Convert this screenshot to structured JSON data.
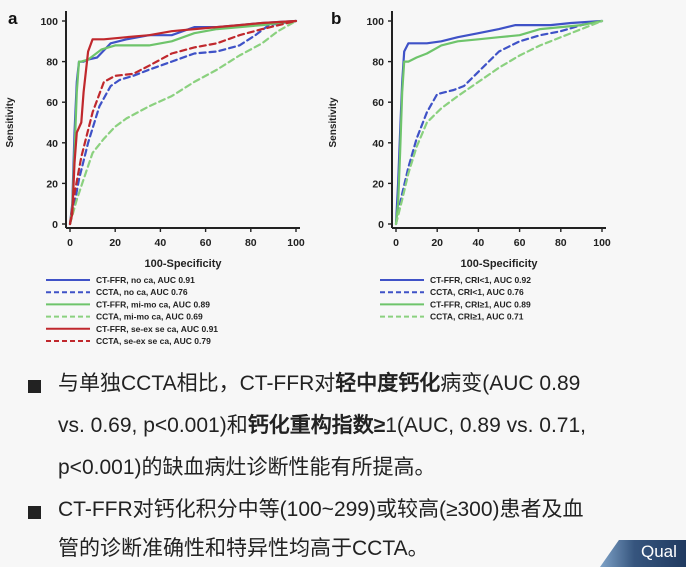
{
  "chart_data": [
    {
      "type": "line",
      "panel_label": "a",
      "xlabel": "100-Specificity",
      "ylabel": "Sensitivity",
      "xlim": [
        0,
        100
      ],
      "ylim": [
        0,
        100
      ],
      "xticks": [
        "0",
        "20",
        "40",
        "60",
        "80",
        "100"
      ],
      "yticks": [
        "0",
        "20",
        "40",
        "60",
        "80",
        "100"
      ],
      "series": [
        {
          "name": "CT-FFR, no ca, AUC 0.91",
          "color": "#3f52c7",
          "dash": false,
          "x": [
            0,
            1,
            2,
            3,
            4,
            6,
            8,
            12,
            18,
            25,
            35,
            45,
            55,
            65,
            75,
            85,
            100
          ],
          "y": [
            0,
            10,
            45,
            70,
            80,
            80,
            81,
            82,
            89,
            91,
            93,
            93,
            97,
            97,
            98,
            99,
            100
          ]
        },
        {
          "name": "CCTA, no ca, AUC 0.76",
          "color": "#3f52c7",
          "dash": true,
          "x": [
            0,
            2,
            4,
            8,
            13,
            18,
            22,
            28,
            35,
            45,
            55,
            65,
            75,
            82,
            88,
            100
          ],
          "y": [
            0,
            10,
            22,
            40,
            58,
            68,
            71,
            73,
            76,
            80,
            84,
            85,
            88,
            93,
            98,
            100
          ]
        },
        {
          "name": "CT-FFR, mi-mo ca, AUC 0.89",
          "color": "#6ec46b",
          "dash": false,
          "x": [
            0,
            1,
            2,
            3,
            4,
            5,
            8,
            14,
            20,
            25,
            35,
            45,
            55,
            65,
            75,
            85,
            100
          ],
          "y": [
            0,
            8,
            35,
            65,
            80,
            80,
            81,
            86,
            88,
            88,
            88,
            90,
            94,
            96,
            97,
            98,
            100
          ]
        },
        {
          "name": "CCTA, mi-mo ca, AUC 0.69",
          "color": "#8bd17f",
          "dash": true,
          "x": [
            0,
            3,
            6,
            10,
            15,
            20,
            25,
            35,
            45,
            55,
            65,
            75,
            85,
            92,
            100
          ],
          "y": [
            0,
            12,
            22,
            35,
            42,
            48,
            52,
            58,
            63,
            70,
            76,
            83,
            89,
            95,
            100
          ]
        },
        {
          "name": "CT-FFR, se-ex se ca, AUC 0.91",
          "color": "#c0282d",
          "dash": false,
          "x": [
            0,
            1,
            2,
            3,
            5,
            6,
            8,
            10,
            15,
            25,
            35,
            45,
            55,
            65,
            75,
            85,
            100
          ],
          "y": [
            0,
            5,
            30,
            45,
            50,
            65,
            85,
            91,
            91,
            92,
            93,
            95,
            96,
            97,
            98,
            99,
            100
          ]
        },
        {
          "name": "CCTA, se-ex se ca, AUC 0.79",
          "color": "#c0282d",
          "dash": true,
          "x": [
            0,
            2,
            5,
            10,
            15,
            20,
            28,
            35,
            45,
            55,
            65,
            75,
            85,
            100
          ],
          "y": [
            0,
            15,
            33,
            55,
            70,
            73,
            74,
            78,
            84,
            87,
            89,
            93,
            96,
            100
          ]
        }
      ]
    },
    {
      "type": "line",
      "panel_label": "b",
      "xlabel": "100-Specificity",
      "ylabel": "Sensitivity",
      "xlim": [
        0,
        100
      ],
      "ylim": [
        0,
        100
      ],
      "xticks": [
        "0",
        "20",
        "40",
        "60",
        "80",
        "100"
      ],
      "yticks": [
        "0",
        "20",
        "40",
        "60",
        "80",
        "100"
      ],
      "series": [
        {
          "name": "CT-FFR, CRI<1, AUC 0.92",
          "color": "#3f52c7",
          "dash": false,
          "x": [
            0,
            1,
            2,
            3,
            4,
            6,
            10,
            15,
            22,
            30,
            40,
            50,
            58,
            65,
            75,
            85,
            100
          ],
          "y": [
            0,
            20,
            45,
            70,
            85,
            89,
            89,
            89,
            90,
            92,
            94,
            96,
            98,
            98,
            98,
            99,
            100
          ]
        },
        {
          "name": "CCTA, CRI<1, AUC 0.76",
          "color": "#3f52c7",
          "dash": true,
          "x": [
            0,
            3,
            6,
            10,
            15,
            20,
            28,
            33,
            40,
            50,
            60,
            70,
            80,
            90,
            100
          ],
          "y": [
            0,
            15,
            28,
            42,
            55,
            64,
            66,
            68,
            75,
            85,
            90,
            93,
            95,
            98,
            100
          ]
        },
        {
          "name": "CT-FFR, CRI≥1, AUC 0.89",
          "color": "#6ec46b",
          "dash": false,
          "x": [
            0,
            1,
            2,
            3,
            4,
            6,
            10,
            15,
            22,
            30,
            40,
            50,
            60,
            70,
            80,
            90,
            100
          ],
          "y": [
            0,
            10,
            35,
            65,
            80,
            80,
            82,
            84,
            88,
            90,
            91,
            92,
            93,
            96,
            97,
            98,
            100
          ]
        },
        {
          "name": "CCTA, CRI≥1, AUC 0.71",
          "color": "#8bd17f",
          "dash": true,
          "x": [
            0,
            3,
            6,
            10,
            15,
            22,
            30,
            40,
            50,
            60,
            70,
            80,
            90,
            100
          ],
          "y": [
            0,
            12,
            25,
            38,
            50,
            57,
            63,
            70,
            77,
            83,
            88,
            92,
            96,
            100
          ]
        }
      ]
    }
  ],
  "bullets": {
    "b1_l1_a": "与单独CCTA相比，CT-FFR对",
    "b1_l1_b": "轻中度钙化",
    "b1_l1_c": "病变(AUC  0.89",
    "b1_l2_a": "vs. 0.69, p<0.001)和",
    "b1_l2_b": "钙化重构指数≥",
    "b1_l2_c": "1(AUC, 0.89 vs. 0.71,",
    "b1_l3": "p<0.001)的缺血病灶诊断性能有所提高。",
    "b2_l1": "CT-FFR对钙化积分中等(100~299)或较高(≥300)患者及血",
    "b2_l2": "管的诊断准确性和特异性均高于CCTA。"
  },
  "brand": {
    "text": "Qual",
    "color": "#2b4a75"
  }
}
